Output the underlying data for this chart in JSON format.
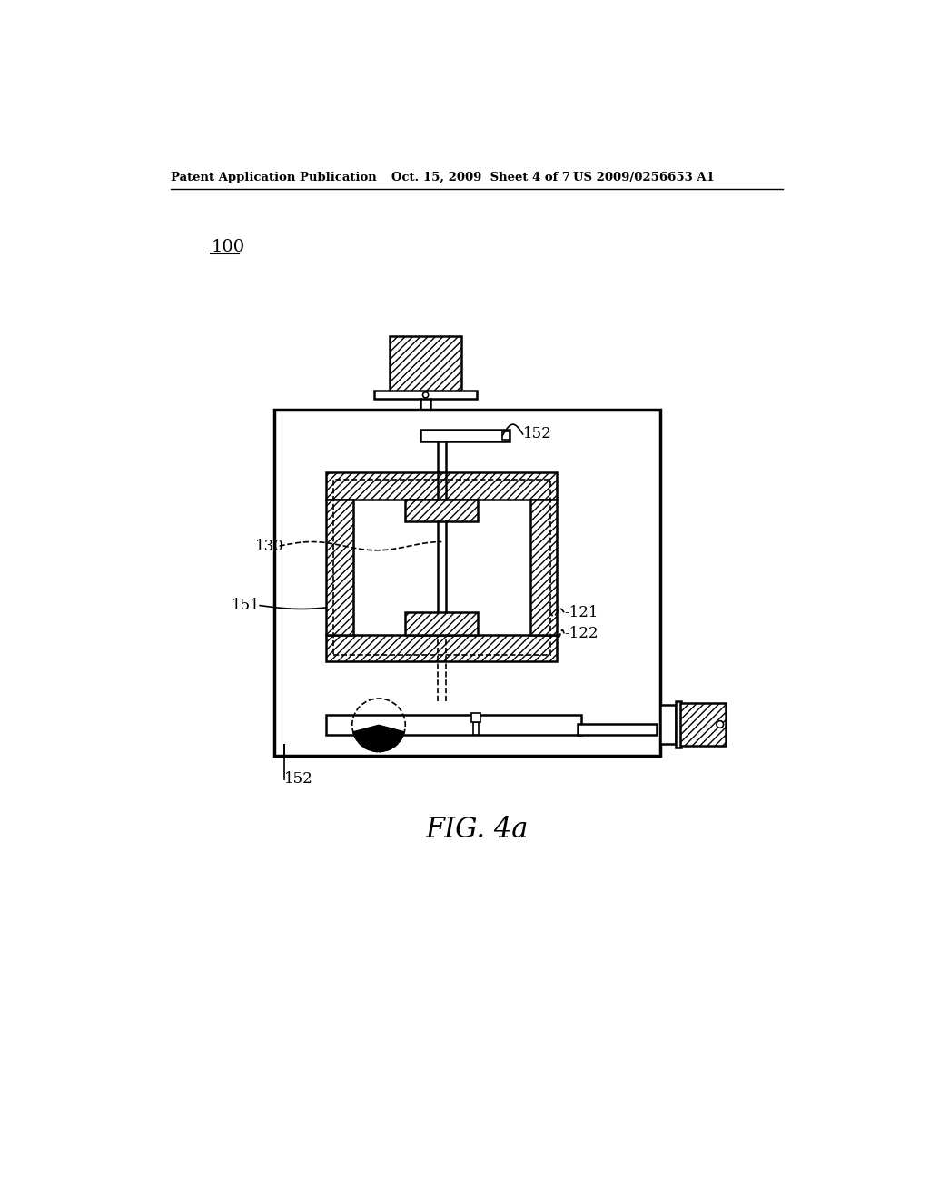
{
  "bg_color": "#ffffff",
  "line_color": "#000000",
  "header_left": "Patent Application Publication",
  "header_mid": "Oct. 15, 2009  Sheet 4 of 7",
  "header_right": "US 2009/0256653 A1",
  "label_100": "100",
  "label_130": "130",
  "label_151": "151",
  "label_121": "-121",
  "label_122": "-122",
  "label_152_top": "152",
  "label_152_bot": "152",
  "fig_caption": "FIG. 4a"
}
